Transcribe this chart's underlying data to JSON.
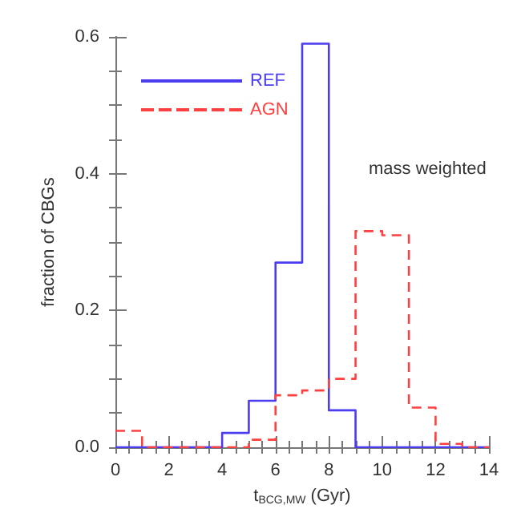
{
  "chart_data": {
    "type": "histogram",
    "xlabel": "t$_{BCG,MW}$ (Gyr)",
    "ylabel": "fraction of CBGs",
    "bins": [
      0,
      1,
      2,
      3,
      4,
      5,
      6,
      7,
      8,
      9,
      10,
      11,
      12,
      13,
      14
    ],
    "series": [
      {
        "name": "REF",
        "color": "#4b3cf0",
        "line_style": "solid",
        "values": [
          0,
          0,
          0,
          0,
          0.021,
          0.068,
          0.27,
          0.59,
          0.054,
          0,
          0,
          0,
          0,
          0
        ]
      },
      {
        "name": "AGN",
        "color": "#ff4040",
        "line_style": "dashed",
        "values": [
          0.024,
          0,
          0,
          0,
          0,
          0.011,
          0.076,
          0.083,
          0.1,
          0.316,
          0.31,
          0.058,
          0.005,
          0
        ]
      }
    ],
    "xlim": [
      0,
      14
    ],
    "xticks": [
      0,
      2,
      4,
      6,
      8,
      10,
      12,
      14
    ],
    "ylim": [
      0,
      0.6
    ],
    "yticks": [
      {
        "value": 0,
        "label": "0.0"
      },
      {
        "value": 0.2,
        "label": "0.2"
      },
      {
        "value": 0.4,
        "label": "0.4"
      },
      {
        "value": 0.6,
        "label": "0.6"
      }
    ],
    "legend": "top left",
    "grid": false,
    "annotations": [
      "mass weighted"
    ]
  }
}
